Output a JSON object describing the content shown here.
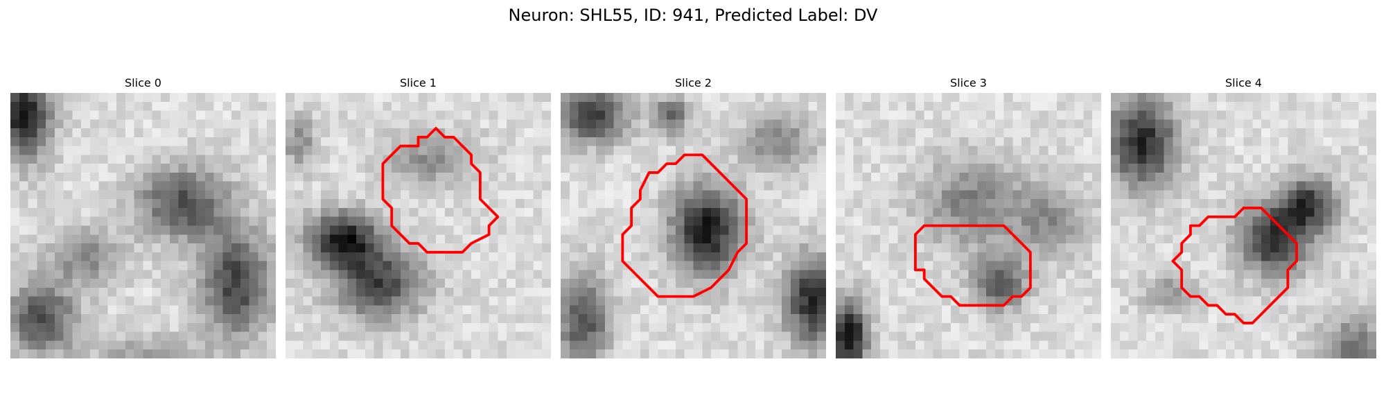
{
  "suptitle": "Neuron: SHL55, ID: 941, Predicted Label: DV",
  "colors": {
    "contour": "#ff0000",
    "background": "#ffffff"
  },
  "colormap": "gray",
  "panels": [
    {
      "title": "Slice 0",
      "has_contour": false
    },
    {
      "title": "Slice 1",
      "has_contour": true
    },
    {
      "title": "Slice 2",
      "has_contour": true
    },
    {
      "title": "Slice 3",
      "has_contour": true
    },
    {
      "title": "Slice 4",
      "has_contour": true
    }
  ]
}
